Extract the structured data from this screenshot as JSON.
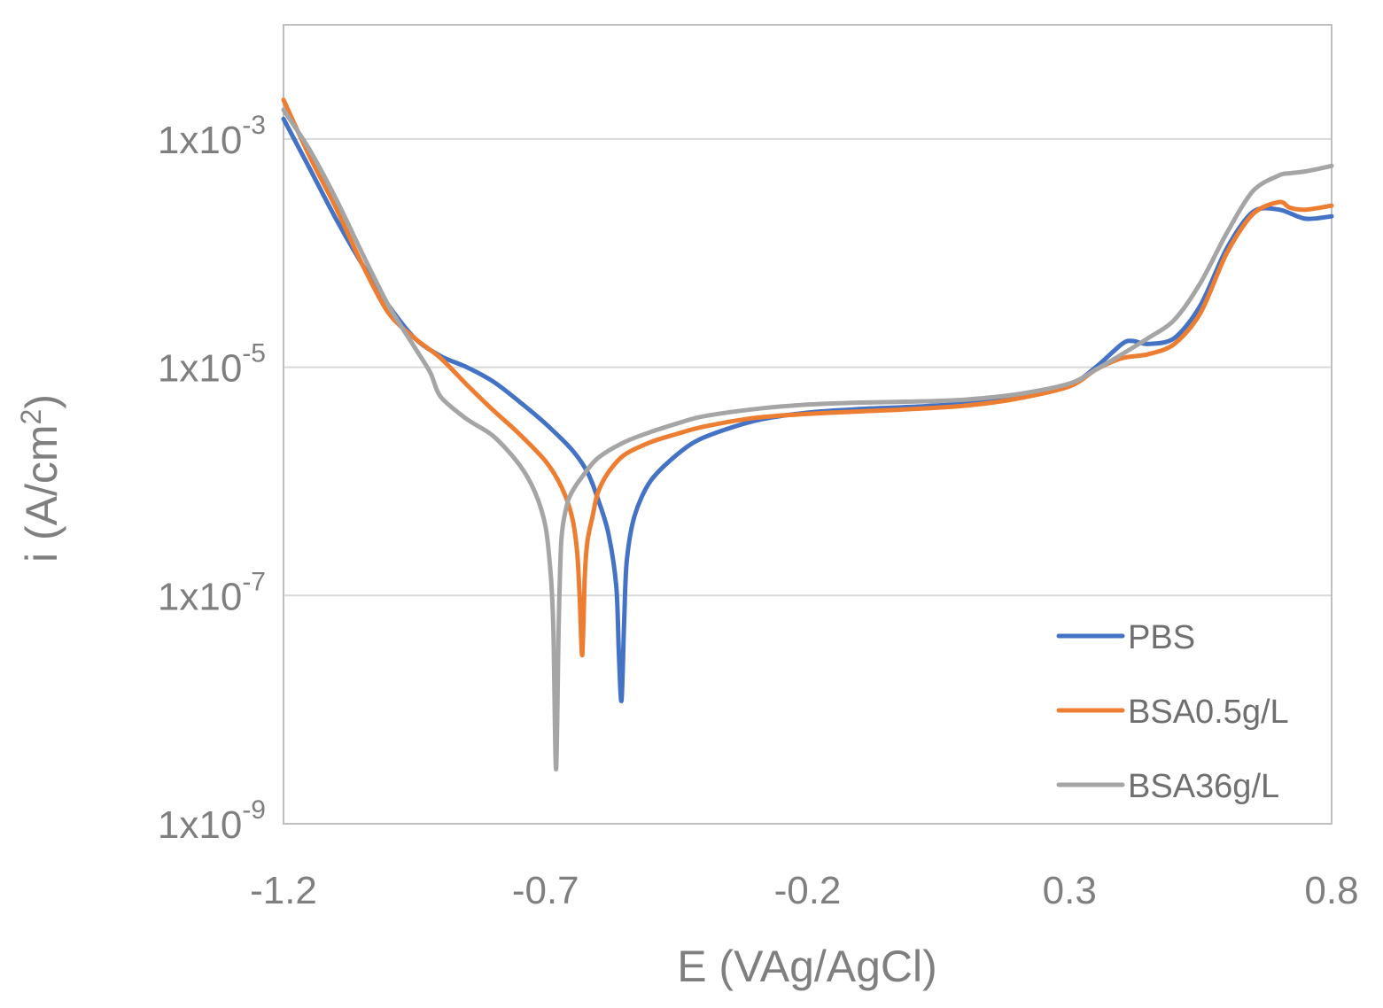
{
  "chart_data": {
    "type": "line",
    "title": "",
    "xlabel": "E (VAg/AgCl)",
    "ylabel": "i (A/cm²)",
    "ylabel_parts": {
      "prefix": "i (A/cm",
      "sup": "2",
      "suffix": ")"
    },
    "xlim": [
      -1.2,
      0.8
    ],
    "ylim": [
      1e-09,
      0.01
    ],
    "yscale": "log",
    "x_ticks": [
      {
        "value": -1.2,
        "label": "-1.2"
      },
      {
        "value": -0.7,
        "label": "-0.7"
      },
      {
        "value": -0.2,
        "label": "-0.2"
      },
      {
        "value": 0.3,
        "label": "0.3"
      },
      {
        "value": 0.8,
        "label": "0.8"
      }
    ],
    "y_ticks": [
      {
        "value": 0.001,
        "mantissa": "1x10",
        "exponent": "-3"
      },
      {
        "value": 1e-05,
        "mantissa": "1x10",
        "exponent": "-5"
      },
      {
        "value": 1e-07,
        "mantissa": "1x10",
        "exponent": "-7"
      },
      {
        "value": 1e-09,
        "mantissa": "1x10",
        "exponent": "-9"
      }
    ],
    "grid": "horizontal",
    "legend_position": "bottom-right",
    "series": [
      {
        "name": "PBS",
        "color": "#4472c4",
        "x": [
          -1.2,
          -1.15,
          -1.1,
          -1.05,
          -1.0,
          -0.95,
          -0.9,
          -0.85,
          -0.8,
          -0.75,
          -0.7,
          -0.65,
          -0.62,
          -0.6,
          -0.58,
          -0.565,
          -0.56,
          -0.555,
          -0.55,
          -0.545,
          -0.53,
          -0.5,
          -0.45,
          -0.4,
          -0.3,
          -0.2,
          -0.1,
          0.0,
          0.1,
          0.2,
          0.3,
          0.35,
          0.4,
          0.42,
          0.45,
          0.5,
          0.55,
          0.6,
          0.65,
          0.7,
          0.75,
          0.8
        ],
        "y": [
          0.0015,
          0.00055,
          0.0002,
          8e-05,
          3.5e-05,
          1.8e-05,
          1.25e-05,
          1e-05,
          7.5e-06,
          5e-06,
          3.2e-06,
          1.9e-06,
          1.2e-06,
          7e-07,
          3.5e-07,
          1.2e-07,
          3e-08,
          1.2e-08,
          6e-08,
          2e-07,
          5e-07,
          1e-06,
          1.7e-06,
          2.4e-06,
          3.4e-06,
          4e-06,
          4.3e-06,
          4.5e-06,
          4.8e-06,
          5.5e-06,
          7e-06,
          1e-05,
          1.6e-05,
          1.7e-05,
          1.6e-05,
          1.8e-05,
          3.5e-05,
          0.00011,
          0.00023,
          0.00024,
          0.0002,
          0.00021
        ]
      },
      {
        "name": "BSA0.5g/L",
        "color": "#ed7d31",
        "x": [
          -1.2,
          -1.15,
          -1.1,
          -1.05,
          -1.0,
          -0.95,
          -0.9,
          -0.85,
          -0.8,
          -0.75,
          -0.7,
          -0.67,
          -0.65,
          -0.64,
          -0.635,
          -0.63,
          -0.625,
          -0.62,
          -0.61,
          -0.6,
          -0.58,
          -0.55,
          -0.5,
          -0.45,
          -0.4,
          -0.3,
          -0.2,
          -0.1,
          0.0,
          0.1,
          0.2,
          0.3,
          0.35,
          0.4,
          0.45,
          0.5,
          0.55,
          0.6,
          0.65,
          0.7,
          0.72,
          0.75,
          0.8
        ],
        "y": [
          0.0022,
          0.0007,
          0.00025,
          8e-05,
          3e-05,
          1.8e-05,
          1.2e-05,
          7e-06,
          4.2e-06,
          2.6e-06,
          1.5e-06,
          9e-07,
          5e-07,
          2.5e-07,
          1e-07,
          3e-08,
          1.5e-07,
          3e-07,
          5e-07,
          8e-07,
          1.2e-06,
          1.7e-06,
          2.2e-06,
          2.6e-06,
          3e-06,
          3.6e-06,
          3.9e-06,
          4.1e-06,
          4.3e-06,
          4.6e-06,
          5.3e-06,
          6.8e-06,
          9.5e-06,
          1.2e-05,
          1.3e-05,
          1.6e-05,
          3e-05,
          0.0001,
          0.00022,
          0.00028,
          0.00025,
          0.00024,
          0.00026
        ]
      },
      {
        "name": "BSA36g/L",
        "color": "#a5a5a5",
        "x": [
          -1.2,
          -1.15,
          -1.1,
          -1.05,
          -1.0,
          -0.95,
          -0.92,
          -0.9,
          -0.85,
          -0.8,
          -0.75,
          -0.72,
          -0.7,
          -0.69,
          -0.685,
          -0.68,
          -0.675,
          -0.67,
          -0.66,
          -0.65,
          -0.63,
          -0.6,
          -0.55,
          -0.5,
          -0.45,
          -0.4,
          -0.3,
          -0.2,
          -0.1,
          0.0,
          0.1,
          0.2,
          0.3,
          0.35,
          0.4,
          0.45,
          0.5,
          0.55,
          0.6,
          0.65,
          0.7,
          0.72,
          0.75,
          0.8
        ],
        "y": [
          0.0018,
          0.0008,
          0.0003,
          0.0001,
          3.5e-05,
          1.5e-05,
          9e-06,
          5.5e-06,
          3.5e-06,
          2.5e-06,
          1.4e-06,
          8e-07,
          4e-07,
          1.5e-07,
          5e-08,
          3e-09,
          5e-08,
          3e-07,
          6e-07,
          8e-07,
          1.1e-06,
          1.6e-06,
          2.2e-06,
          2.7e-06,
          3.2e-06,
          3.7e-06,
          4.3e-06,
          4.7e-06,
          4.9e-06,
          5e-06,
          5.2e-06,
          5.8e-06,
          7.2e-06,
          9.5e-06,
          1.3e-05,
          1.8e-05,
          2.6e-05,
          5.5e-05,
          0.00015,
          0.00035,
          0.00048,
          0.0005,
          0.00052,
          0.00058
        ]
      }
    ]
  }
}
